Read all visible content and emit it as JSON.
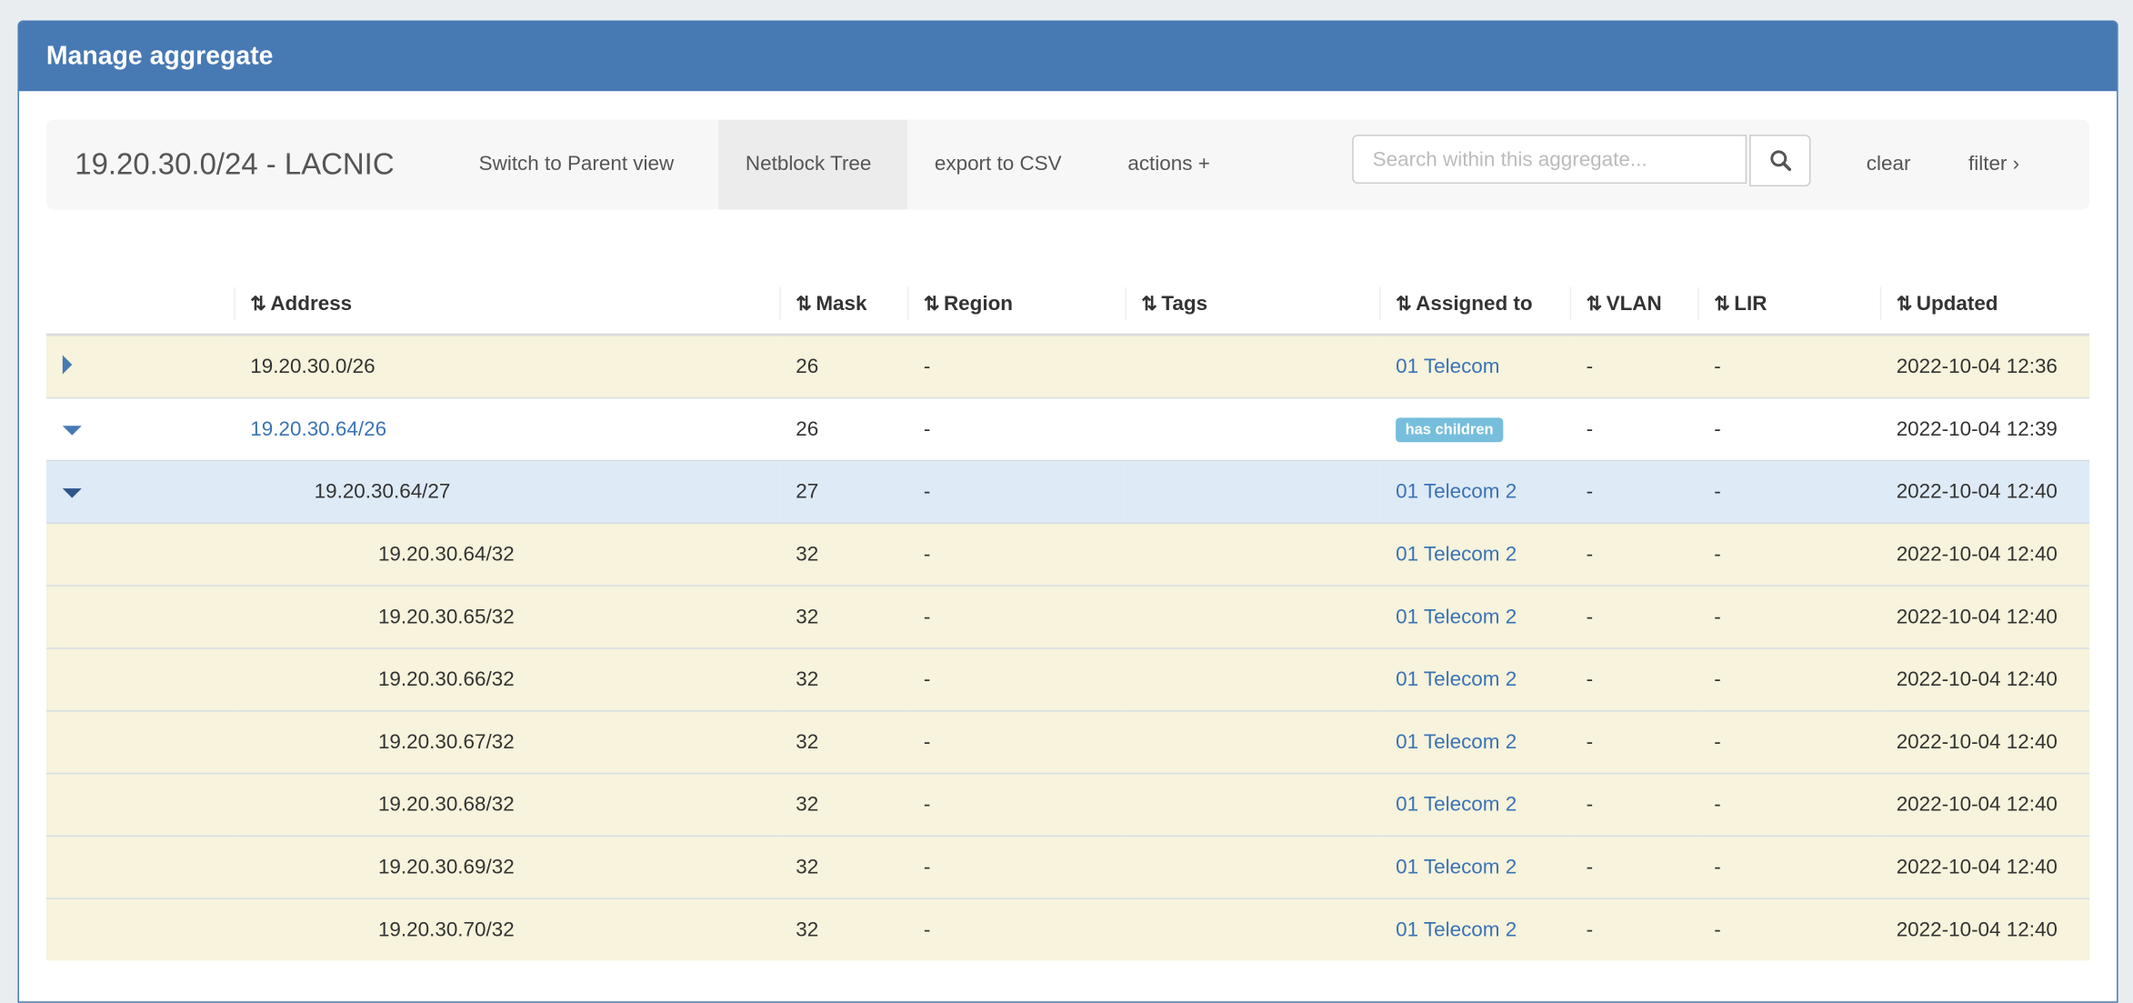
{
  "panel": {
    "title": "Manage aggregate"
  },
  "toolbar": {
    "aggregate": "19.20.30.0/24 - LACNIC",
    "switch_parent": "Switch to Parent view",
    "netblock_tree": "Netblock Tree",
    "export_csv": "export to CSV",
    "actions": "actions +",
    "search_placeholder": "Search within this aggregate...",
    "search_value": "",
    "clear": "clear",
    "filter": "filter ›"
  },
  "columns": [
    "Address",
    "Mask",
    "Region",
    "Tags",
    "Assigned to",
    "VLAN",
    "LIR",
    "Updated"
  ],
  "sort_icon": "⇅",
  "rows": [
    {
      "toggle": "collapsed",
      "level": 0,
      "address": "19.20.30.0/26",
      "address_link": false,
      "mask": "26",
      "region": "-",
      "tags": "",
      "assigned": "01 Telecom",
      "assigned_badge": false,
      "vlan": "-",
      "lir": "-",
      "updated": "2022-10-04 12:36",
      "style": "y"
    },
    {
      "toggle": "expanded",
      "level": 0,
      "address": "19.20.30.64/26",
      "address_link": true,
      "mask": "26",
      "region": "-",
      "tags": "",
      "assigned": "has children",
      "assigned_badge": true,
      "vlan": "-",
      "lir": "-",
      "updated": "2022-10-04 12:39",
      "style": "w"
    },
    {
      "toggle": "expanded",
      "level": 1,
      "address": "19.20.30.64/27",
      "address_link": false,
      "mask": "27",
      "region": "-",
      "tags": "",
      "assigned": "01 Telecom 2",
      "assigned_badge": false,
      "vlan": "-",
      "lir": "-",
      "updated": "2022-10-04 12:40",
      "style": "s"
    },
    {
      "toggle": "none",
      "level": 2,
      "address": "19.20.30.64/32",
      "address_link": false,
      "mask": "32",
      "region": "-",
      "tags": "",
      "assigned": "01 Telecom 2",
      "assigned_badge": false,
      "vlan": "-",
      "lir": "-",
      "updated": "2022-10-04 12:40",
      "style": "y"
    },
    {
      "toggle": "none",
      "level": 2,
      "address": "19.20.30.65/32",
      "address_link": false,
      "mask": "32",
      "region": "-",
      "tags": "",
      "assigned": "01 Telecom 2",
      "assigned_badge": false,
      "vlan": "-",
      "lir": "-",
      "updated": "2022-10-04 12:40",
      "style": "y"
    },
    {
      "toggle": "none",
      "level": 2,
      "address": "19.20.30.66/32",
      "address_link": false,
      "mask": "32",
      "region": "-",
      "tags": "",
      "assigned": "01 Telecom 2",
      "assigned_badge": false,
      "vlan": "-",
      "lir": "-",
      "updated": "2022-10-04 12:40",
      "style": "y"
    },
    {
      "toggle": "none",
      "level": 2,
      "address": "19.20.30.67/32",
      "address_link": false,
      "mask": "32",
      "region": "-",
      "tags": "",
      "assigned": "01 Telecom 2",
      "assigned_badge": false,
      "vlan": "-",
      "lir": "-",
      "updated": "2022-10-04 12:40",
      "style": "y"
    },
    {
      "toggle": "none",
      "level": 2,
      "address": "19.20.30.68/32",
      "address_link": false,
      "mask": "32",
      "region": "-",
      "tags": "",
      "assigned": "01 Telecom 2",
      "assigned_badge": false,
      "vlan": "-",
      "lir": "-",
      "updated": "2022-10-04 12:40",
      "style": "y"
    },
    {
      "toggle": "none",
      "level": 2,
      "address": "19.20.30.69/32",
      "address_link": false,
      "mask": "32",
      "region": "-",
      "tags": "",
      "assigned": "01 Telecom 2",
      "assigned_badge": false,
      "vlan": "-",
      "lir": "-",
      "updated": "2022-10-04 12:40",
      "style": "y"
    },
    {
      "toggle": "none",
      "level": 2,
      "address": "19.20.30.70/32",
      "address_link": false,
      "mask": "32",
      "region": "-",
      "tags": "",
      "assigned": "01 Telecom 2",
      "assigned_badge": false,
      "vlan": "-",
      "lir": "-",
      "updated": "2022-10-04 12:40",
      "style": "y"
    }
  ],
  "colors": {
    "header": "#4779b3",
    "link": "#3a73b5",
    "badge": "#76bedc",
    "row_highlight": "#f7f3dc",
    "row_selected": "#deeaf6"
  }
}
